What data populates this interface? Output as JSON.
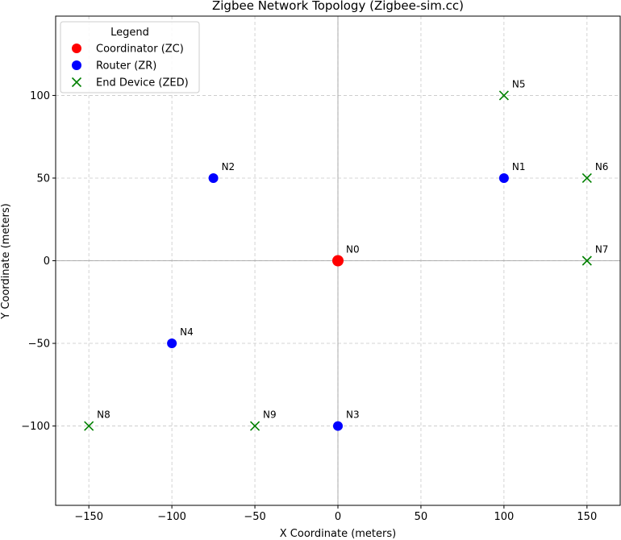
{
  "chart_data": {
    "type": "scatter",
    "title": "Zigbee Network Topology (Zigbee-sim.cc)",
    "xlabel": "X Coordinate (meters)",
    "ylabel": "Y Coordinate (meters)",
    "xlim": [
      -170,
      170
    ],
    "ylim": [
      -148,
      148
    ],
    "x_ticks": [
      -150,
      -100,
      -50,
      0,
      50,
      100,
      150
    ],
    "y_ticks": [
      -100,
      -50,
      0,
      50,
      100
    ],
    "x_tick_labels": [
      "−150",
      "−100",
      "−50",
      "0",
      "50",
      "100",
      "150"
    ],
    "y_tick_labels": [
      "−100",
      "−50",
      "0",
      "50",
      "100"
    ],
    "grid": true,
    "legend": {
      "title": "Legend",
      "placement": "top-left"
    },
    "series": [
      {
        "name": "Coordinator (ZC)",
        "marker": "circle-large",
        "color": "#ff0000",
        "points": [
          {
            "label": "N0",
            "x": 0,
            "y": 0
          }
        ]
      },
      {
        "name": "Router (ZR)",
        "marker": "circle",
        "color": "#0000ff",
        "points": [
          {
            "label": "N1",
            "x": 100,
            "y": 50
          },
          {
            "label": "N2",
            "x": -75,
            "y": 50
          },
          {
            "label": "N3",
            "x": 0,
            "y": -100
          },
          {
            "label": "N4",
            "x": -100,
            "y": -50
          }
        ]
      },
      {
        "name": "End Device (ZED)",
        "marker": "x",
        "color": "#008000",
        "points": [
          {
            "label": "N5",
            "x": 100,
            "y": 100
          },
          {
            "label": "N6",
            "x": 150,
            "y": 50
          },
          {
            "label": "N7",
            "x": 150,
            "y": 0
          },
          {
            "label": "N8",
            "x": -150,
            "y": -100
          },
          {
            "label": "N9",
            "x": -50,
            "y": -100
          }
        ]
      }
    ]
  }
}
